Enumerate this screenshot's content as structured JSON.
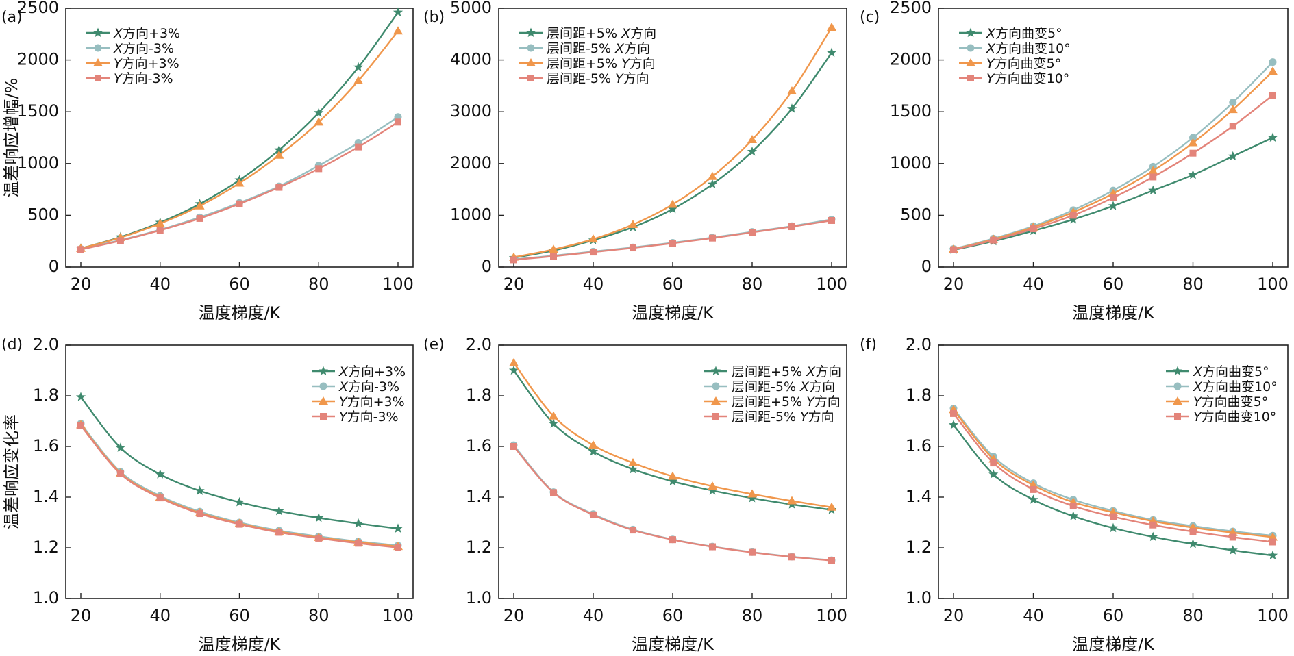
{
  "colors": {
    "series": [
      "#3f8a6e",
      "#97bec0",
      "#f0974c",
      "#e3847a"
    ],
    "axis": "#222222"
  },
  "markers": [
    "star",
    "circle",
    "triangle",
    "square"
  ],
  "chart_data": [
    {
      "id": "a",
      "panel_label": "(a)",
      "type": "line",
      "xlabel": "温度梯度/K",
      "ylabel": "温差响应增幅/%",
      "xlim": [
        20,
        100
      ],
      "ylim": [
        0,
        2500
      ],
      "xticks": [
        20,
        40,
        60,
        80,
        100
      ],
      "yticks": [
        0,
        500,
        1000,
        1500,
        2000,
        2500
      ],
      "legend_position": "top-left",
      "x": [
        20,
        30,
        40,
        50,
        60,
        70,
        80,
        90,
        100
      ],
      "series": [
        {
          "name": "X方向+3%",
          "values": [
            180,
            290,
            430,
            610,
            840,
            1130,
            1490,
            1930,
            2460
          ]
        },
        {
          "name": "X方向-3%",
          "values": [
            175,
            260,
            360,
            480,
            620,
            780,
            980,
            1200,
            1450
          ]
        },
        {
          "name": "Y方向+3%",
          "values": [
            180,
            285,
            420,
            590,
            810,
            1080,
            1400,
            1800,
            2280
          ]
        },
        {
          "name": "Y方向-3%",
          "values": [
            170,
            255,
            355,
            470,
            610,
            770,
            950,
            1160,
            1400
          ]
        }
      ]
    },
    {
      "id": "b",
      "panel_label": "(b)",
      "type": "line",
      "xlabel": "温度梯度/K",
      "ylabel": "",
      "xlim": [
        20,
        100
      ],
      "ylim": [
        0,
        5000
      ],
      "xticks": [
        20,
        40,
        60,
        80,
        100
      ],
      "yticks": [
        0,
        1000,
        2000,
        3000,
        4000,
        5000
      ],
      "legend_position": "top-left",
      "x": [
        20,
        30,
        40,
        50,
        60,
        70,
        80,
        90,
        100
      ],
      "series": [
        {
          "name": "层间距+5% X方向",
          "values": [
            180,
            320,
            520,
            770,
            1120,
            1600,
            2230,
            3060,
            4140
          ]
        },
        {
          "name": "层间距-5% X方向",
          "values": [
            150,
            220,
            300,
            380,
            470,
            570,
            680,
            790,
            920
          ]
        },
        {
          "name": "层间距+5% Y方向",
          "values": [
            190,
            340,
            540,
            820,
            1210,
            1750,
            2460,
            3400,
            4630
          ]
        },
        {
          "name": "层间距-5% Y方向",
          "values": [
            140,
            210,
            290,
            370,
            460,
            560,
            670,
            780,
            900
          ]
        }
      ]
    },
    {
      "id": "c",
      "panel_label": "(c)",
      "type": "line",
      "xlabel": "温度梯度/K",
      "ylabel": "",
      "xlim": [
        20,
        100
      ],
      "ylim": [
        0,
        2500
      ],
      "xticks": [
        20,
        40,
        60,
        80,
        100
      ],
      "yticks": [
        0,
        500,
        1000,
        1500,
        2000,
        2500
      ],
      "legend_position": "top-left",
      "x": [
        20,
        30,
        40,
        50,
        60,
        70,
        80,
        90,
        100
      ],
      "series": [
        {
          "name": "X方向曲变5°",
          "values": [
            165,
            250,
            350,
            460,
            590,
            740,
            890,
            1070,
            1250
          ]
        },
        {
          "name": "X方向曲变10°",
          "values": [
            175,
            275,
            395,
            550,
            740,
            970,
            1250,
            1590,
            1980
          ]
        },
        {
          "name": "Y方向曲变5°",
          "values": [
            172,
            268,
            385,
            530,
            710,
            930,
            1200,
            1520,
            1890
          ]
        },
        {
          "name": "Y方向曲变10°",
          "values": [
            168,
            260,
            370,
            500,
            670,
            870,
            1100,
            1360,
            1660
          ]
        }
      ]
    },
    {
      "id": "d",
      "panel_label": "(d)",
      "type": "line",
      "xlabel": "温度梯度/K",
      "ylabel": "温差响应变化率",
      "xlim": [
        20,
        100
      ],
      "ylim": [
        1.0,
        2.0
      ],
      "xticks": [
        20,
        40,
        60,
        80,
        100
      ],
      "yticks": [
        1.0,
        1.2,
        1.4,
        1.6,
        1.8,
        2.0
      ],
      "legend_position": "top-right",
      "x": [
        20,
        30,
        40,
        50,
        60,
        70,
        80,
        90,
        100
      ],
      "series": [
        {
          "name": "X方向+3%",
          "values": [
            1.795,
            1.595,
            1.49,
            1.425,
            1.38,
            1.345,
            1.318,
            1.296,
            1.276
          ]
        },
        {
          "name": "X方向-3%",
          "values": [
            1.69,
            1.5,
            1.405,
            1.343,
            1.3,
            1.268,
            1.245,
            1.225,
            1.209
          ]
        },
        {
          "name": "Y方向+3%",
          "values": [
            1.685,
            1.495,
            1.4,
            1.338,
            1.296,
            1.264,
            1.241,
            1.222,
            1.205
          ]
        },
        {
          "name": "Y方向-3%",
          "values": [
            1.682,
            1.492,
            1.397,
            1.335,
            1.293,
            1.261,
            1.238,
            1.218,
            1.201
          ]
        }
      ]
    },
    {
      "id": "e",
      "panel_label": "(e)",
      "type": "line",
      "xlabel": "温度梯度/K",
      "ylabel": "",
      "xlim": [
        20,
        100
      ],
      "ylim": [
        1.0,
        2.0
      ],
      "xticks": [
        20,
        40,
        60,
        80,
        100
      ],
      "yticks": [
        1.0,
        1.2,
        1.4,
        1.6,
        1.8,
        2.0
      ],
      "legend_position": "top-right",
      "x": [
        20,
        30,
        40,
        50,
        60,
        70,
        80,
        90,
        100
      ],
      "series": [
        {
          "name": "层间距+5% X方向",
          "values": [
            1.9,
            1.69,
            1.58,
            1.51,
            1.462,
            1.426,
            1.396,
            1.371,
            1.35
          ]
        },
        {
          "name": "层间距-5% X方向",
          "values": [
            1.605,
            1.42,
            1.333,
            1.272,
            1.233,
            1.205,
            1.183,
            1.165,
            1.151
          ]
        },
        {
          "name": "层间距+5% Y方向",
          "values": [
            1.93,
            1.72,
            1.605,
            1.535,
            1.482,
            1.443,
            1.412,
            1.385,
            1.36
          ]
        },
        {
          "name": "层间距-5% Y方向",
          "values": [
            1.6,
            1.418,
            1.33,
            1.27,
            1.232,
            1.204,
            1.182,
            1.164,
            1.15
          ]
        }
      ]
    },
    {
      "id": "f",
      "panel_label": "(f)",
      "type": "line",
      "xlabel": "温度梯度/K",
      "ylabel": "",
      "xlim": [
        20,
        100
      ],
      "ylim": [
        1.0,
        2.0
      ],
      "xticks": [
        20,
        40,
        60,
        80,
        100
      ],
      "yticks": [
        1.0,
        1.2,
        1.4,
        1.6,
        1.8,
        2.0
      ],
      "legend_position": "top-right",
      "x": [
        20,
        30,
        40,
        50,
        60,
        70,
        80,
        90,
        100
      ],
      "series": [
        {
          "name": "X方向曲变5°",
          "values": [
            1.685,
            1.49,
            1.39,
            1.325,
            1.278,
            1.243,
            1.215,
            1.19,
            1.17
          ]
        },
        {
          "name": "X方向曲变10°",
          "values": [
            1.75,
            1.56,
            1.455,
            1.39,
            1.346,
            1.31,
            1.286,
            1.265,
            1.248
          ]
        },
        {
          "name": "Y方向曲变5°",
          "values": [
            1.745,
            1.55,
            1.447,
            1.38,
            1.34,
            1.305,
            1.28,
            1.26,
            1.242
          ]
        },
        {
          "name": "Y方向曲变10°",
          "values": [
            1.73,
            1.535,
            1.43,
            1.365,
            1.323,
            1.29,
            1.264,
            1.242,
            1.223
          ]
        }
      ]
    }
  ]
}
